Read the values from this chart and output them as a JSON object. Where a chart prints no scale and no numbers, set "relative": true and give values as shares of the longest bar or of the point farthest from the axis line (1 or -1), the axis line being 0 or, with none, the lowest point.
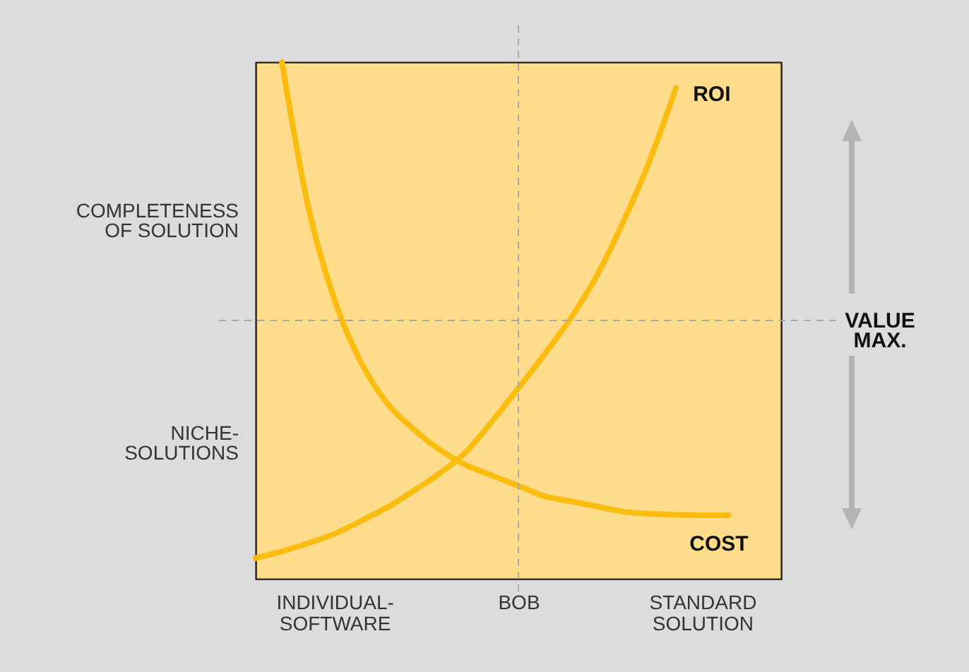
{
  "chart_data": {
    "type": "line",
    "relative": true,
    "categories": [
      null,
      null,
      null,
      "INDIVIDUAL-SOFTWARE",
      null,
      null,
      null,
      null,
      null,
      null,
      "BOB",
      null,
      null,
      null,
      null,
      null,
      null,
      "STANDARD SOLUTION",
      null,
      null,
      null
    ],
    "annotations": [
      "COMPLETENESS OF SOLUTION",
      "NICHE-SOLUTIONS"
    ],
    "grid": false,
    "legend": false,
    "ref_lines": [
      {
        "axis": "x",
        "value": "BOB",
        "color": "#a8a8a8",
        "line_style": "dashed"
      },
      {
        "axis": "y",
        "value": 0.5,
        "label": "VALUE MAX.",
        "color": "#a8a8a8",
        "line_style": "dashed"
      }
    ],
    "series": [
      {
        "name": "ROI",
        "color": "#fbbc10",
        "values": [
          0.04,
          0.053,
          0.069,
          0.087,
          0.112,
          0.138,
          0.17,
          0.204,
          0.245,
          0.305,
          0.369,
          0.435,
          0.505,
          0.588,
          0.692,
          0.81,
          0.95,
          null,
          null,
          null,
          null
        ]
      },
      {
        "name": "COST",
        "color": "#fbbc10",
        "values": [
          null,
          1.0,
          0.72,
          0.54,
          0.42,
          0.34,
          0.29,
          0.25,
          0.22,
          0.2,
          0.18,
          0.16,
          0.15,
          0.14,
          0.13,
          0.126,
          0.124,
          0.123,
          0.123,
          null,
          null
        ]
      }
    ]
  }
}
